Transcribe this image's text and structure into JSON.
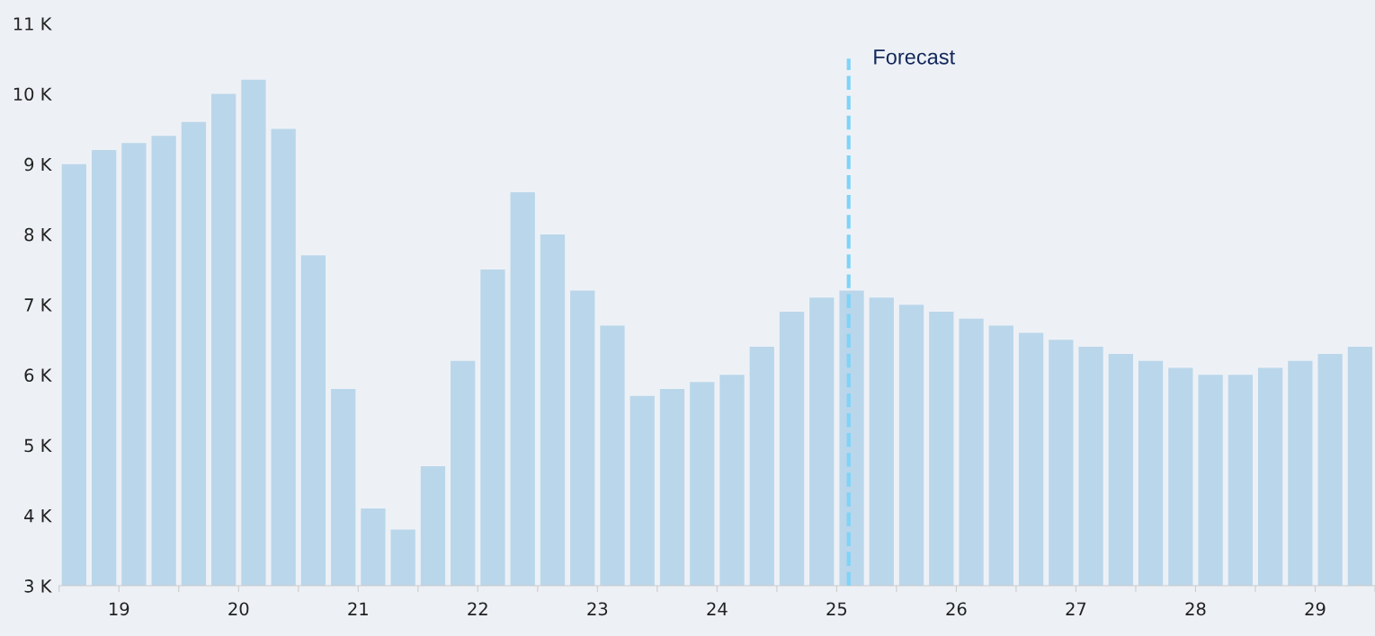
{
  "chart_data": {
    "type": "bar",
    "x": [
      18.625,
      18.875,
      19.125,
      19.375,
      19.625,
      19.875,
      20.125,
      20.375,
      20.625,
      20.875,
      21.125,
      21.375,
      21.625,
      21.875,
      22.125,
      22.375,
      22.625,
      22.875,
      23.125,
      23.375,
      23.625,
      23.875,
      24.125,
      24.375,
      24.625,
      24.875,
      25.125,
      25.375,
      25.625,
      25.875,
      26.125,
      26.375,
      26.625,
      26.875,
      27.125,
      27.375,
      27.625,
      27.875,
      28.125,
      28.375,
      28.625,
      28.875,
      29.125,
      29.375
    ],
    "values": [
      9.0,
      9.2,
      9.3,
      9.4,
      9.6,
      10.0,
      10.2,
      9.5,
      7.7,
      5.8,
      4.1,
      3.8,
      4.7,
      6.2,
      7.5,
      8.6,
      8.0,
      7.2,
      6.7,
      5.7,
      5.8,
      5.9,
      6.0,
      6.4,
      6.9,
      7.1,
      7.2,
      7.1,
      7.0,
      6.9,
      6.8,
      6.7,
      6.6,
      6.5,
      6.4,
      6.3,
      6.2,
      6.1,
      6.0,
      6.0,
      6.1,
      6.2,
      6.3,
      6.4
    ],
    "color": "#bad6ea",
    "ylim": [
      3,
      11
    ],
    "yticks": [
      {
        "value": 3,
        "label": "3 K"
      },
      {
        "value": 4,
        "label": "4 K"
      },
      {
        "value": 5,
        "label": "5 K"
      },
      {
        "value": 6,
        "label": "6 K"
      },
      {
        "value": 7,
        "label": "7 K"
      },
      {
        "value": 8,
        "label": "8 K"
      },
      {
        "value": 9,
        "label": "9 K"
      },
      {
        "value": 10,
        "label": "10 K"
      },
      {
        "value": 11,
        "label": "11 K"
      }
    ],
    "xlim": [
      18.5,
      29.5
    ],
    "xticks": [
      {
        "value": 18.5,
        "label": null
      },
      19,
      {
        "value": 19.5,
        "label": null
      },
      20,
      {
        "value": 20.5,
        "label": null
      },
      21,
      {
        "value": 21.5,
        "label": null
      },
      22,
      {
        "value": 22.5,
        "label": null
      },
      23,
      {
        "value": 23.5,
        "label": null
      },
      24,
      {
        "value": 24.5,
        "label": null
      },
      25,
      {
        "value": 25.5,
        "label": null
      },
      26,
      {
        "value": 26.5,
        "label": null
      },
      27,
      {
        "value": 27.5,
        "label": null
      },
      28,
      {
        "value": 28.5,
        "label": null
      },
      29,
      {
        "value": 29.5,
        "label": null
      }
    ],
    "ref_lines": [
      {
        "axis": "x",
        "value": 25.1,
        "label": "Forecast",
        "color": "#7fd3f7",
        "line_style": "dashed"
      }
    ],
    "grid": false
  }
}
